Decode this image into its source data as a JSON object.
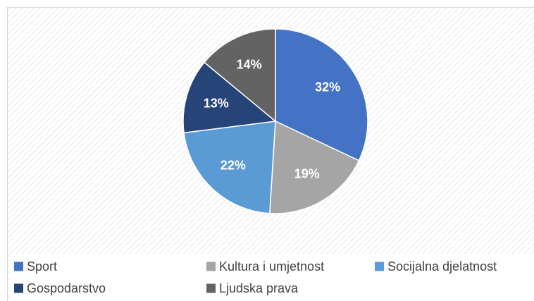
{
  "chart_data": {
    "type": "pie",
    "categories": [
      "Sport",
      "Kultura i umjetnost",
      "Socijalna djelatnost",
      "Gospodarstvo",
      "Ljudska prava"
    ],
    "values": [
      32,
      19,
      22,
      13,
      14
    ],
    "value_labels": [
      "32%",
      "19%",
      "22%",
      "13%",
      "14%"
    ],
    "colors": [
      "#4472c4",
      "#a5a5a5",
      "#5b9bd5",
      "#264478",
      "#636363"
    ],
    "legend": "bottom"
  }
}
